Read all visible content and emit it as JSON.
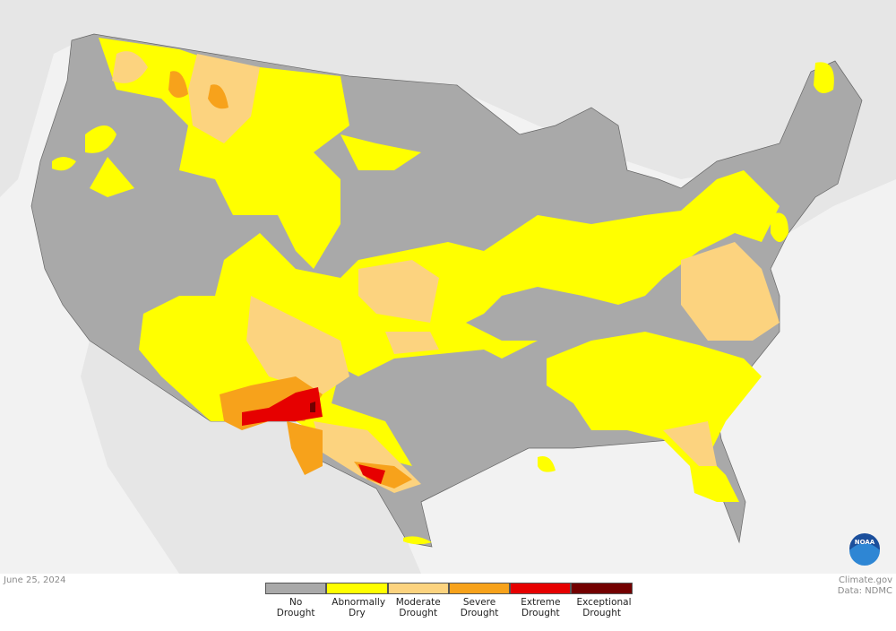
{
  "date": "June 25, 2024",
  "legend": [
    {
      "label": "No Drought",
      "color": "#a9a9a9"
    },
    {
      "label": "Abnormally Dry",
      "color": "#ffff00"
    },
    {
      "label": "Moderate Drought",
      "color": "#fcd37f"
    },
    {
      "label": "Severe Drought",
      "color": "#f7a21b"
    },
    {
      "label": "Extreme Drought",
      "color": "#e60000"
    },
    {
      "label": "Exceptional Drought",
      "color": "#730000"
    }
  ],
  "credit": "Climate.gov",
  "source": "Data: NDMC",
  "logo": "NOAA"
}
